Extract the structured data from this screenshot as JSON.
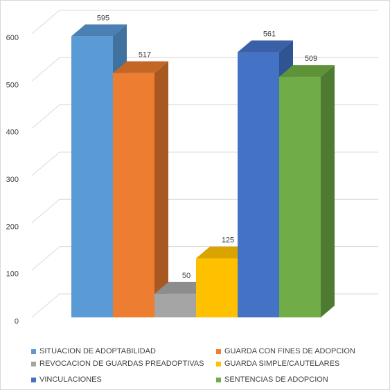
{
  "chart_data": {
    "type": "bar",
    "categories": [
      "SITUACION DE ADOPTABILIDAD",
      "GUARDA CON FINES DE ADOPCION",
      "REVOCACION DE GUARDAS PREADOPTIVAS",
      "GUARDA SIMPLE/CAUTELARES",
      "VINCULACIONES",
      "SENTENCIAS DE ADOPCION"
    ],
    "values": [
      595,
      517,
      50,
      125,
      561,
      509
    ],
    "data_labels": [
      "595",
      "517",
      "50",
      "125",
      "561",
      "509"
    ],
    "colors": [
      "#5b9bd5",
      "#ed7d31",
      "#a5a5a5",
      "#ffc000",
      "#4472c4",
      "#70ad47"
    ],
    "side_colors": [
      "#41729e",
      "#a85821",
      "#787878",
      "#b78a00",
      "#2f5393",
      "#4e7a31"
    ],
    "top_colors": [
      "#4a80b3",
      "#c46726",
      "#8d8d8d",
      "#d9a300",
      "#3a61a8",
      "#5e933a"
    ],
    "yticks": [
      "0",
      "100",
      "200",
      "300",
      "400",
      "500",
      "600"
    ],
    "ylim": [
      0,
      700
    ],
    "grid": true,
    "legend_position": "bottom",
    "title": "",
    "xlabel": "",
    "ylabel": ""
  }
}
